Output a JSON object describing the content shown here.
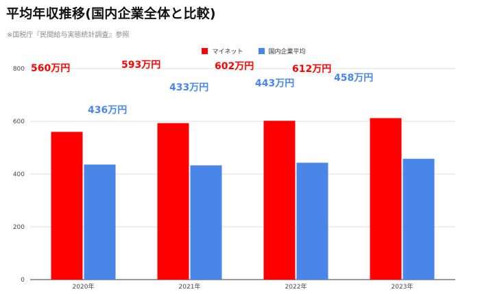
{
  "title": "平均年収推移(国内企業全体と比較)",
  "subtitle": "※国税庁『民間給与実態統計調査』参照",
  "colors": {
    "series_a": "#ff0000",
    "series_b": "#4a86e8",
    "grid": "#dddddd",
    "axis": "#333333"
  },
  "chart_data": {
    "type": "bar",
    "categories": [
      "2020年",
      "2021年",
      "2022年",
      "2023年"
    ],
    "series": [
      {
        "name": "マイネット",
        "values": [
          560,
          593,
          602,
          612
        ],
        "labels": [
          "560万円",
          "593万円",
          "602万円",
          "612万円"
        ]
      },
      {
        "name": "国内企業平均",
        "values": [
          436,
          433,
          443,
          458
        ],
        "labels": [
          "436万円",
          "433万円",
          "443万円",
          "458万円"
        ]
      }
    ],
    "ylim": [
      0,
      800
    ],
    "yticks": [
      "0",
      "200",
      "400",
      "600",
      "800"
    ],
    "grid": true,
    "legend": "top-center"
  }
}
